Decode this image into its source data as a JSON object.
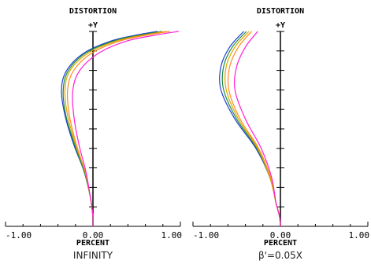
{
  "chart_data": [
    {
      "type": "line",
      "title": "DISTORTION",
      "y_axis_label": "+Y",
      "xlabel": "PERCENT",
      "condition": "INFINITY",
      "xlim": [
        -1.0,
        1.0
      ],
      "ylim": [
        0,
        1
      ],
      "x_tick_labels": [
        "-1.00",
        "0.00",
        "1.00"
      ],
      "colors": [
        "#1f3fd0",
        "#1a8a3a",
        "#d8a800",
        "#ff8a1f",
        "#ff1fd6"
      ],
      "series": [
        {
          "values": [
            [
              0.0,
              0.0
            ],
            [
              0.0,
              0.05
            ],
            [
              -0.03,
              0.15
            ],
            [
              -0.1,
              0.28
            ],
            [
              -0.22,
              0.42
            ],
            [
              -0.32,
              0.57
            ],
            [
              -0.36,
              0.7
            ],
            [
              -0.3,
              0.8
            ],
            [
              -0.1,
              0.89
            ],
            [
              0.2,
              0.95
            ],
            [
              0.48,
              0.98
            ],
            [
              0.74,
              1.0
            ]
          ]
        },
        {
          "values": [
            [
              0.0,
              0.0
            ],
            [
              0.0,
              0.05
            ],
            [
              -0.03,
              0.15
            ],
            [
              -0.1,
              0.28
            ],
            [
              -0.21,
              0.42
            ],
            [
              -0.31,
              0.57
            ],
            [
              -0.34,
              0.7
            ],
            [
              -0.28,
              0.8
            ],
            [
              -0.08,
              0.89
            ],
            [
              0.23,
              0.95
            ],
            [
              0.52,
              0.98
            ],
            [
              0.79,
              1.0
            ]
          ]
        },
        {
          "values": [
            [
              0.0,
              0.0
            ],
            [
              0.0,
              0.05
            ],
            [
              -0.03,
              0.15
            ],
            [
              -0.09,
              0.28
            ],
            [
              -0.2,
              0.42
            ],
            [
              -0.29,
              0.57
            ],
            [
              -0.32,
              0.7
            ],
            [
              -0.26,
              0.8
            ],
            [
              -0.05,
              0.89
            ],
            [
              0.26,
              0.95
            ],
            [
              0.56,
              0.98
            ],
            [
              0.84,
              1.0
            ]
          ]
        },
        {
          "values": [
            [
              0.0,
              0.0
            ],
            [
              0.0,
              0.05
            ],
            [
              -0.03,
              0.15
            ],
            [
              -0.09,
              0.28
            ],
            [
              -0.19,
              0.42
            ],
            [
              -0.27,
              0.57
            ],
            [
              -0.29,
              0.7
            ],
            [
              -0.22,
              0.8
            ],
            [
              -0.01,
              0.89
            ],
            [
              0.3,
              0.95
            ],
            [
              0.6,
              0.98
            ],
            [
              0.88,
              1.0
            ]
          ]
        },
        {
          "values": [
            [
              0.0,
              0.0
            ],
            [
              0.0,
              0.05
            ],
            [
              -0.03,
              0.15
            ],
            [
              -0.08,
              0.28
            ],
            [
              -0.16,
              0.42
            ],
            [
              -0.22,
              0.57
            ],
            [
              -0.23,
              0.7
            ],
            [
              -0.15,
              0.8
            ],
            [
              0.07,
              0.89
            ],
            [
              0.38,
              0.95
            ],
            [
              0.7,
              0.98
            ],
            [
              0.98,
              1.0
            ]
          ]
        }
      ]
    },
    {
      "type": "line",
      "title": "DISTORTION",
      "y_axis_label": "+Y",
      "xlabel": "PERCENT",
      "condition": "β'=0.05X",
      "xlim": [
        -1.0,
        1.0
      ],
      "ylim": [
        0,
        1
      ],
      "x_tick_labels": [
        "-1.00",
        "0.00",
        "1.00"
      ],
      "colors": [
        "#1f3fd0",
        "#1a8a3a",
        "#d8a800",
        "#ff8a1f",
        "#ff1fd6"
      ],
      "series": [
        {
          "values": [
            [
              0.0,
              0.0
            ],
            [
              -0.01,
              0.05
            ],
            [
              -0.05,
              0.12
            ],
            [
              -0.12,
              0.25
            ],
            [
              -0.28,
              0.4
            ],
            [
              -0.52,
              0.55
            ],
            [
              -0.68,
              0.7
            ],
            [
              -0.68,
              0.82
            ],
            [
              -0.58,
              0.92
            ],
            [
              -0.42,
              1.0
            ]
          ]
        },
        {
          "values": [
            [
              0.0,
              0.0
            ],
            [
              -0.01,
              0.05
            ],
            [
              -0.05,
              0.12
            ],
            [
              -0.12,
              0.25
            ],
            [
              -0.27,
              0.4
            ],
            [
              -0.5,
              0.55
            ],
            [
              -0.65,
              0.7
            ],
            [
              -0.65,
              0.82
            ],
            [
              -0.55,
              0.92
            ],
            [
              -0.39,
              1.0
            ]
          ]
        },
        {
          "values": [
            [
              0.0,
              0.0
            ],
            [
              -0.01,
              0.05
            ],
            [
              -0.05,
              0.12
            ],
            [
              -0.12,
              0.25
            ],
            [
              -0.26,
              0.4
            ],
            [
              -0.48,
              0.55
            ],
            [
              -0.62,
              0.7
            ],
            [
              -0.62,
              0.82
            ],
            [
              -0.52,
              0.92
            ],
            [
              -0.36,
              1.0
            ]
          ]
        },
        {
          "values": [
            [
              0.0,
              0.0
            ],
            [
              -0.01,
              0.05
            ],
            [
              -0.05,
              0.12
            ],
            [
              -0.11,
              0.25
            ],
            [
              -0.25,
              0.4
            ],
            [
              -0.46,
              0.55
            ],
            [
              -0.59,
              0.7
            ],
            [
              -0.58,
              0.82
            ],
            [
              -0.48,
              0.92
            ],
            [
              -0.33,
              1.0
            ]
          ]
        },
        {
          "values": [
            [
              0.0,
              0.0
            ],
            [
              -0.01,
              0.05
            ],
            [
              -0.05,
              0.12
            ],
            [
              -0.1,
              0.25
            ],
            [
              -0.22,
              0.4
            ],
            [
              -0.4,
              0.55
            ],
            [
              -0.52,
              0.7
            ],
            [
              -0.5,
              0.82
            ],
            [
              -0.4,
              0.92
            ],
            [
              -0.26,
              1.0
            ]
          ]
        }
      ]
    }
  ]
}
